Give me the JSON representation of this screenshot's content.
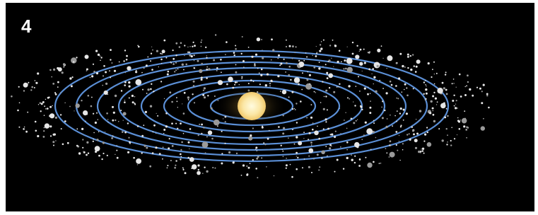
{
  "panel_label": "4"
}
